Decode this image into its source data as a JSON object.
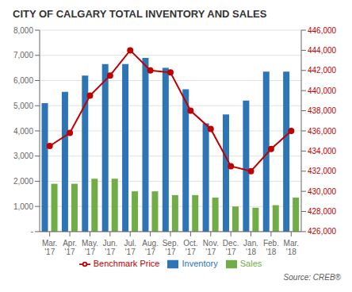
{
  "chart_data": {
    "type": "bar",
    "title": "CITY OF CALGARY TOTAL INVENTORY AND SALES",
    "categories": [
      "Mar.\n'17",
      "Apr.\n'17",
      "May.\n'17",
      "Jun.\n'17",
      "Jul.\n'17",
      "Aug.\n'17",
      "Sep.\n'17",
      "Oct.\n'17",
      "Nov.\n'17",
      "Dec.\n'17",
      "Jan.\n'18",
      "Feb.\n'18",
      "Mar.\n'18"
    ],
    "series": [
      {
        "name": "Inventory",
        "color": "#2E75B6",
        "values": [
          5100,
          5550,
          6200,
          6650,
          6650,
          6900,
          6500,
          5650,
          4300,
          4650,
          5200,
          6350,
          6350
        ]
      },
      {
        "name": "Sales",
        "color": "#70AD47",
        "values": [
          1900,
          1900,
          2100,
          2100,
          1600,
          1600,
          1450,
          1450,
          1350,
          1000,
          950,
          1050,
          1350
        ]
      },
      {
        "name": "Benchmark Price",
        "type": "line",
        "axis": "y2",
        "marker": "circle",
        "color": "#C00000",
        "values": [
          434500,
          435800,
          439500,
          441500,
          444000,
          442000,
          441800,
          438000,
          436200,
          432500,
          432000,
          434200,
          436000
        ]
      }
    ],
    "ylim": [
      0,
      8000
    ],
    "yticks": [
      {
        "value": 0,
        "label": "-"
      },
      {
        "value": 1000,
        "label": "1,000"
      },
      {
        "value": 2000,
        "label": "2,000"
      },
      {
        "value": 3000,
        "label": "3,000"
      },
      {
        "value": 4000,
        "label": "4,000"
      },
      {
        "value": 5000,
        "label": "5,000"
      },
      {
        "value": 6000,
        "label": "6,000"
      },
      {
        "value": 7000,
        "label": "7,000"
      },
      {
        "value": 8000,
        "label": "8,000"
      }
    ],
    "y2lim": [
      426000,
      446000
    ],
    "y2ticks": [
      {
        "value": 426000,
        "label": "426,000"
      },
      {
        "value": 428000,
        "label": "428,000"
      },
      {
        "value": 430000,
        "label": "430,000"
      },
      {
        "value": 432000,
        "label": "432,000"
      },
      {
        "value": 434000,
        "label": "434,000"
      },
      {
        "value": 436000,
        "label": "436,000"
      },
      {
        "value": 438000,
        "label": "438,000"
      },
      {
        "value": 440000,
        "label": "440,000"
      },
      {
        "value": 442000,
        "label": "442,000"
      },
      {
        "value": 444000,
        "label": "444,000"
      },
      {
        "value": 446000,
        "label": "446,000"
      }
    ],
    "grid": true,
    "legend": "bottom",
    "annotations": [
      "Source: CREB®"
    ]
  }
}
